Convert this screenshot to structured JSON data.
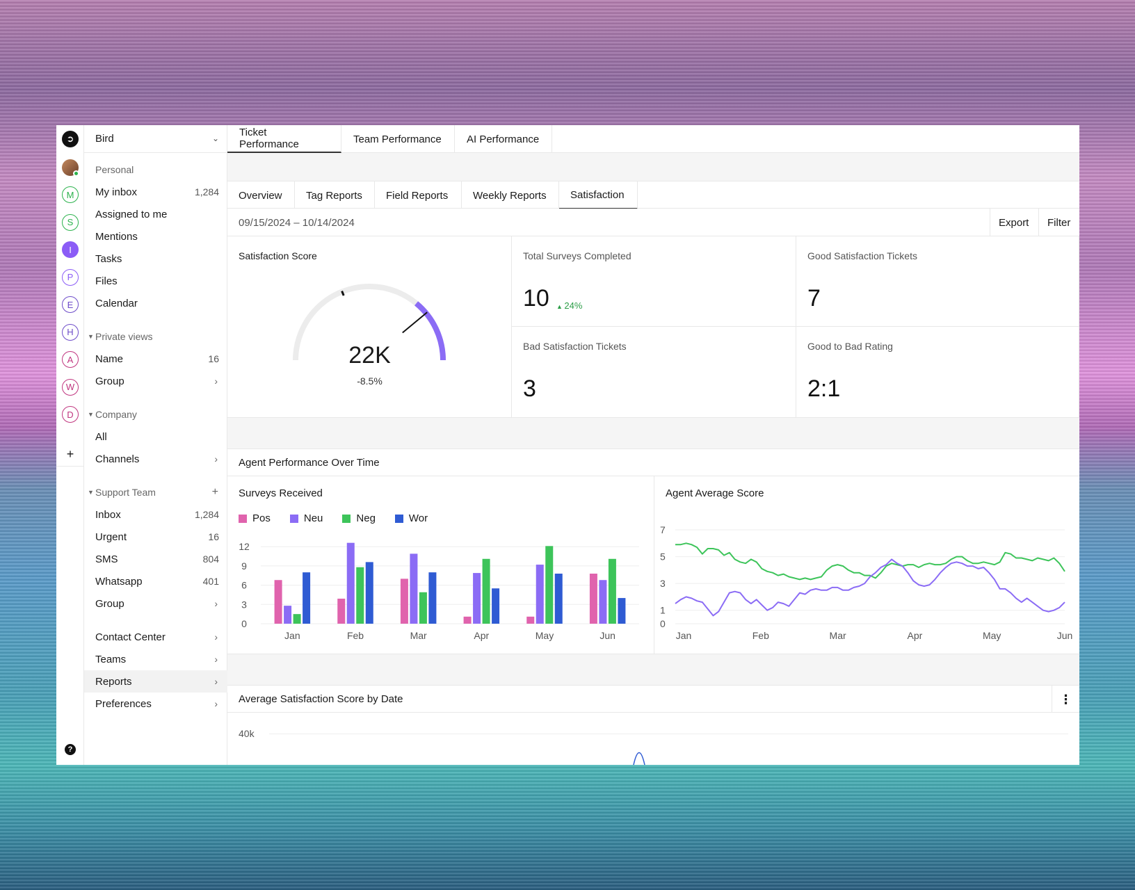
{
  "workspace": {
    "name": "Bird"
  },
  "rail": {
    "workspaces": [
      {
        "letter": "M",
        "color": "#2bb24c",
        "filled": false
      },
      {
        "letter": "S",
        "color": "#2bb24c",
        "filled": false
      },
      {
        "letter": "I",
        "color": "#8b5cf6",
        "filled": true
      },
      {
        "letter": "P",
        "color": "#8b5cf6",
        "filled": false
      },
      {
        "letter": "E",
        "color": "#6d4bc9",
        "filled": false
      },
      {
        "letter": "H",
        "color": "#6d4bc9",
        "filled": false
      },
      {
        "letter": "A",
        "color": "#c0357f",
        "filled": false
      },
      {
        "letter": "W",
        "color": "#c0357f",
        "filled": false
      },
      {
        "letter": "D",
        "color": "#c0357f",
        "filled": false
      }
    ],
    "plus": "+",
    "help": "?"
  },
  "nav": {
    "personal_label": "Personal",
    "my_inbox": {
      "label": "My inbox",
      "count": "1,284"
    },
    "assigned": "Assigned to me",
    "mentions": "Mentions",
    "tasks": "Tasks",
    "files": "Files",
    "calendar": "Calendar",
    "private_views": "Private views",
    "pv_name": {
      "label": "Name",
      "count": "16"
    },
    "pv_group": "Group",
    "company": "Company",
    "company_all": "All",
    "company_channels": "Channels",
    "support_team": "Support Team",
    "st_inbox": {
      "label": "Inbox",
      "count": "1,284"
    },
    "st_urgent": {
      "label": "Urgent",
      "count": "16"
    },
    "st_sms": {
      "label": "SMS",
      "count": "804"
    },
    "st_whatsapp": {
      "label": "Whatsapp",
      "count": "401"
    },
    "st_group": "Group",
    "contact_center": "Contact Center",
    "teams": "Teams",
    "reports": "Reports",
    "preferences": "Preferences"
  },
  "top_tabs": [
    "Ticket Performance",
    "Team Performance",
    "AI Performance"
  ],
  "sub_tabs": [
    "Overview",
    "Tag Reports",
    "Field Reports",
    "Weekly Reports",
    "Satisfaction"
  ],
  "date_range": "09/15/2024  –  10/14/2024",
  "actions": {
    "export": "Export",
    "filter": "Filter"
  },
  "kpis": {
    "satisfaction": {
      "title": "Satisfaction Score",
      "value": "22K",
      "delta": "-8.5%",
      "gauge_fraction": 0.22
    },
    "total_surveys": {
      "title": "Total Surveys Completed",
      "value": "10",
      "delta": "24%"
    },
    "good": {
      "title": "Good Satisfaction Tickets",
      "value": "7"
    },
    "bad": {
      "title": "Bad Satisfaction Tickets",
      "value": "3"
    },
    "ratio": {
      "title": "Good to Bad Rating",
      "value": "2:1"
    }
  },
  "agent_section_title": "Agent Performance Over Time",
  "avg_section_title": "Average Satisfaction Score by Date",
  "chart_data": [
    {
      "type": "bar",
      "title": "Surveys Received",
      "categories": [
        "Jan",
        "Feb",
        "Mar",
        "Apr",
        "May",
        "Jun"
      ],
      "series": [
        {
          "name": "Pos",
          "color": "#e063ad",
          "values": [
            6.8,
            3.9,
            7.0,
            1.1,
            1.1,
            7.8
          ]
        },
        {
          "name": "Neu",
          "color": "#8b6cf5",
          "values": [
            2.8,
            12.6,
            10.9,
            7.9,
            9.2,
            6.8
          ]
        },
        {
          "name": "Neg",
          "color": "#3dc45a",
          "values": [
            1.5,
            8.8,
            4.9,
            10.1,
            12.1,
            10.1
          ]
        },
        {
          "name": "Wor",
          "color": "#2f5bd3",
          "values": [
            8.0,
            9.6,
            8.0,
            5.5,
            7.8,
            4.0
          ]
        }
      ],
      "yticks": [
        0,
        3,
        6,
        9,
        12
      ],
      "ylim": [
        0,
        13
      ]
    },
    {
      "type": "line",
      "title": "Agent Average Score",
      "x_ticks": [
        "Jan",
        "Feb",
        "Mar",
        "Apr",
        "May",
        "Jun"
      ],
      "yticks": [
        0,
        1,
        3,
        5,
        7
      ],
      "ylim": [
        0,
        7
      ],
      "series": [
        {
          "color": "#3dc45a",
          "values": [
            5.9,
            5.9,
            6.0,
            5.9,
            5.7,
            5.2,
            5.6,
            5.6,
            5.5,
            5.1,
            5.3,
            4.8,
            4.6,
            4.5,
            4.8,
            4.6,
            4.1,
            3.9,
            3.8,
            3.6,
            3.7,
            3.5,
            3.4,
            3.3,
            3.4,
            3.3,
            3.4,
            3.5,
            4.0,
            4.3,
            4.4,
            4.3,
            4.0,
            3.8,
            3.8,
            3.6,
            3.6,
            3.4,
            3.8,
            4.3,
            4.5,
            4.4,
            4.3,
            4.4,
            4.4,
            4.2,
            4.4,
            4.5,
            4.4,
            4.4,
            4.5,
            4.8,
            5.0,
            5.0,
            4.7,
            4.5,
            4.5,
            4.6,
            4.5,
            4.4,
            4.6,
            5.3,
            5.2,
            4.9,
            4.9,
            4.8,
            4.7,
            4.9,
            4.8,
            4.7,
            4.9,
            4.5,
            3.9
          ]
        },
        {
          "color": "#8b6cf5",
          "values": [
            1.5,
            1.8,
            2.0,
            1.9,
            1.7,
            1.6,
            1.1,
            0.6,
            0.9,
            1.6,
            2.3,
            2.4,
            2.3,
            1.8,
            1.5,
            1.8,
            1.4,
            1.0,
            1.2,
            1.6,
            1.5,
            1.3,
            1.8,
            2.3,
            2.2,
            2.5,
            2.6,
            2.5,
            2.5,
            2.7,
            2.7,
            2.5,
            2.5,
            2.7,
            2.8,
            3.0,
            3.5,
            3.8,
            4.2,
            4.4,
            4.8,
            4.5,
            4.3,
            3.8,
            3.2,
            2.9,
            2.8,
            2.9,
            3.3,
            3.8,
            4.2,
            4.5,
            4.6,
            4.5,
            4.3,
            4.3,
            4.1,
            4.2,
            3.8,
            3.3,
            2.6,
            2.6,
            2.3,
            1.9,
            1.6,
            1.9,
            1.6,
            1.3,
            1.0,
            0.9,
            1.0,
            1.2,
            1.6
          ]
        }
      ]
    }
  ],
  "avg_chart": {
    "y_tick": "40k"
  }
}
